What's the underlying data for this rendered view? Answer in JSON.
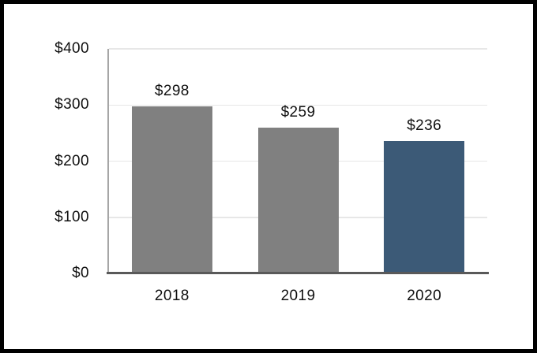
{
  "chart_data": {
    "type": "bar",
    "title": "",
    "categories": [
      "2018",
      "2019",
      "2020"
    ],
    "values": [
      298,
      259,
      236
    ],
    "value_labels": [
      "$298",
      "$259",
      "$236"
    ],
    "bar_colors": [
      "#808080",
      "#808080",
      "#3C5A77"
    ],
    "xlabel": "",
    "ylabel": "",
    "ylim": [
      0,
      400
    ],
    "yticks": [
      0,
      100,
      200,
      300,
      400
    ],
    "ytick_labels": [
      "$0",
      "$100",
      "$200",
      "$300",
      "$400"
    ],
    "grid": "horizontal",
    "legend_position": "none"
  },
  "style": {
    "background": "#FFFFFF",
    "frame_border_color": "#000000",
    "gridline_color": "#E7E7E7",
    "y_axis_line_color": "#A6A6A6",
    "baseline_color": "#595959",
    "text_color": "#111111",
    "default_bar_color": "#808080",
    "highlight_bar_color": "#3C5A77"
  }
}
